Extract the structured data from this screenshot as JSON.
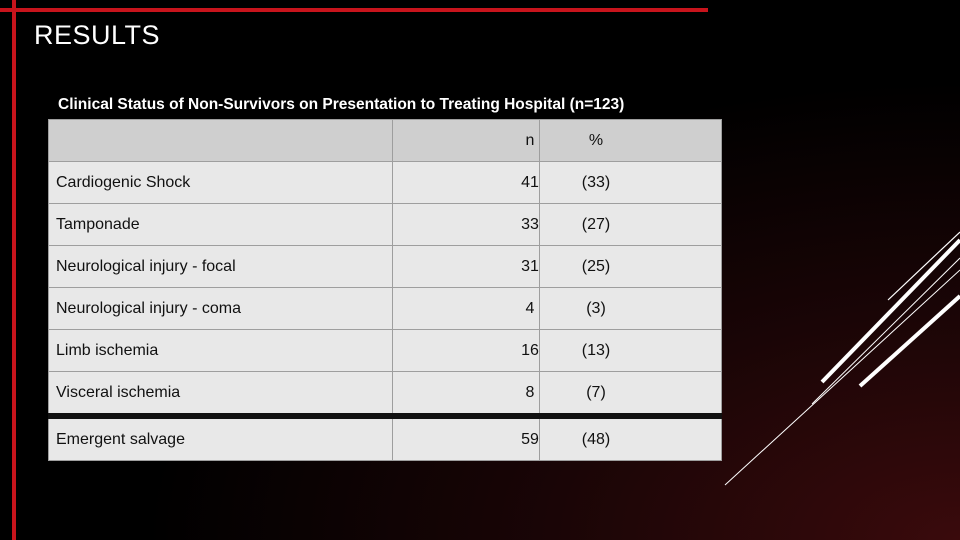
{
  "slide": {
    "title": "RESULTS"
  },
  "table": {
    "caption": "Clinical Status of Non-Survivors on Presentation to Treating Hospital (n=123)",
    "headers": {
      "label": "",
      "n": "n",
      "pct": "%"
    },
    "rows": [
      {
        "label": "Cardiogenic Shock",
        "n": "41",
        "pct": "(33)"
      },
      {
        "label": "Tamponade",
        "n": "33",
        "pct": "(27)"
      },
      {
        "label": "Neurological  injury - focal",
        "n": "31",
        "pct": "(25)"
      },
      {
        "label": "Neurological injury - coma",
        "n": "4",
        "pct": "(3)"
      },
      {
        "label": "Limb ischemia",
        "n": "16",
        "pct": "(13)"
      },
      {
        "label": "Visceral ischemia",
        "n": "8",
        "pct": "(7)"
      },
      {
        "label": "Emergent salvage",
        "n": "59",
        "pct": "(48)"
      }
    ]
  },
  "colors": {
    "accent": "#c8141c",
    "table_bg": "#e8e8e8",
    "header_bg": "#cfcfcf"
  }
}
